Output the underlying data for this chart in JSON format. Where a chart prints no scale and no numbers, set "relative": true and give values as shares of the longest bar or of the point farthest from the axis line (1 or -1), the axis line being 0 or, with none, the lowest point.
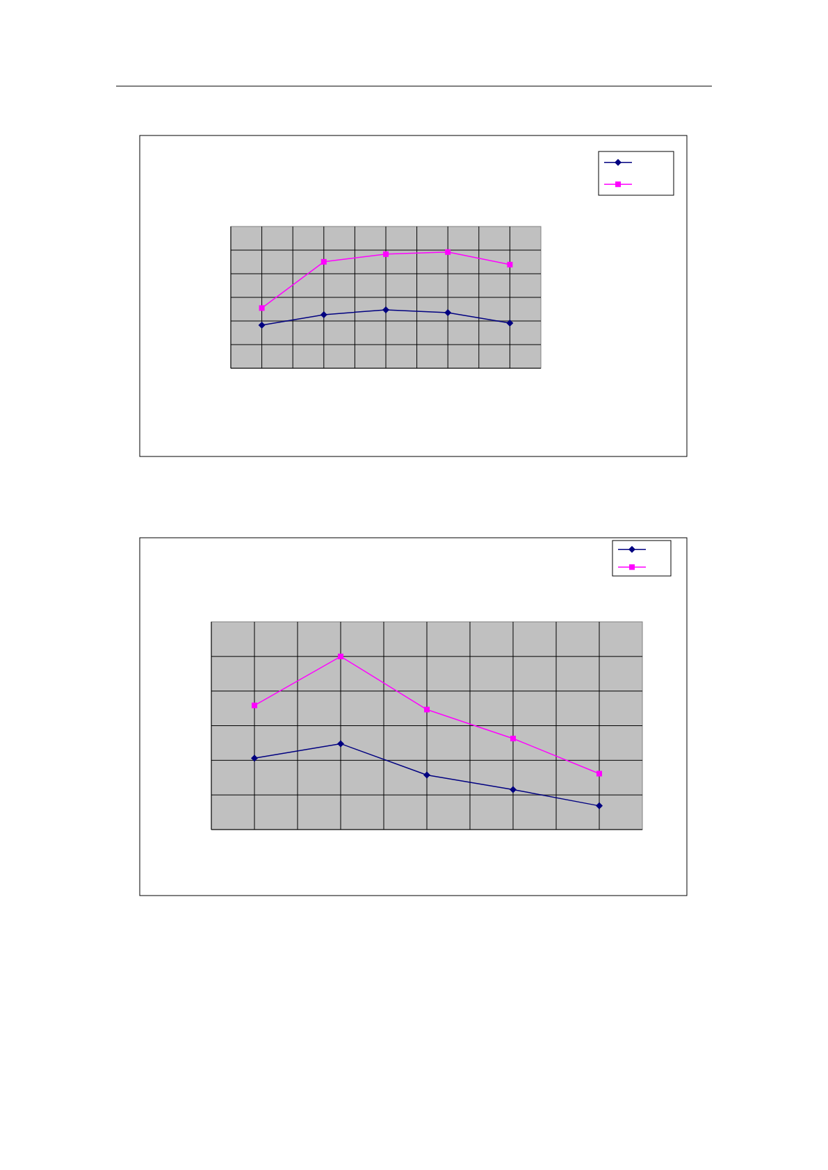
{
  "chart_data": [
    {
      "type": "line",
      "relative": true,
      "categories": [
        null,
        null,
        null,
        null,
        null
      ],
      "grid": true,
      "series": [
        {
          "color": "#000080",
          "marker": "diamond",
          "values": [
            0.371,
            0.461,
            0.503,
            0.479,
            0.389
          ]
        },
        {
          "color": "#ff00ff",
          "marker": "square",
          "values": [
            0.518,
            0.916,
            0.982,
            1,
            0.892
          ]
        }
      ]
    },
    {
      "type": "line",
      "relative": true,
      "categories": [
        null,
        null,
        null,
        null,
        null
      ],
      "grid": true,
      "series": [
        {
          "color": "#000080",
          "marker": "diamond",
          "values": [
            0.412,
            0.496,
            0.315,
            0.231,
            0.137
          ]
        },
        {
          "color": "#ff00ff",
          "marker": "square",
          "values": [
            0.717,
            1,
            0.693,
            0.526,
            0.323
          ]
        }
      ]
    }
  ]
}
